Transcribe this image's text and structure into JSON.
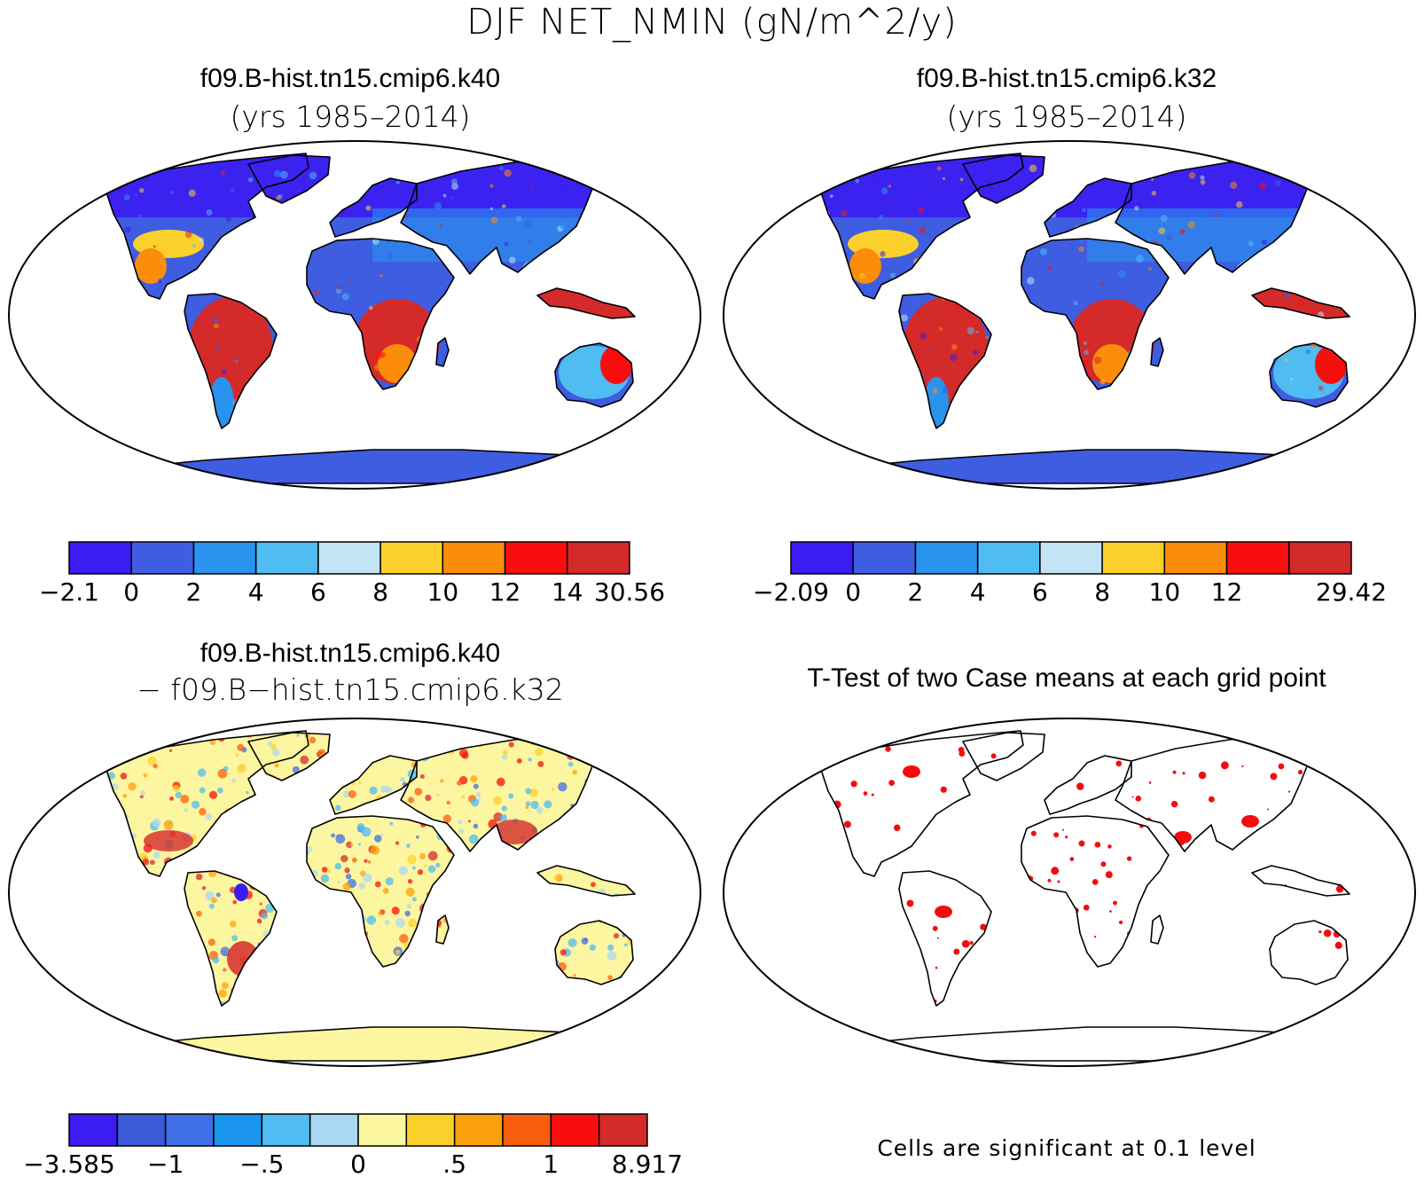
{
  "figure": {
    "title": "DJF NET_NMIN (gN/m^2/y)"
  },
  "panels": [
    {
      "id": "case1",
      "title": "f09.B-hist.tn15.cmip6.k40",
      "subtitle": "(yrs 1985–2014)",
      "map_type": "filled-contour",
      "colorbar": {
        "colors": [
          "#3b1cf2",
          "#3e5de0",
          "#2a93ee",
          "#4fbcf2",
          "#c3e4f5",
          "#fcd02c",
          "#fb8d0a",
          "#f90e0e",
          "#d42a2a"
        ],
        "labels": [
          "−2.1",
          "0",
          "2",
          "4",
          "6",
          "8",
          "10",
          "12",
          "14",
          "30.56"
        ]
      }
    },
    {
      "id": "case2",
      "title": "f09.B-hist.tn15.cmip6.k32",
      "subtitle": "(yrs 1985–2014)",
      "map_type": "filled-contour",
      "colorbar": {
        "colors": [
          "#3b1cf2",
          "#3e5de0",
          "#2a93ee",
          "#4fbcf2",
          "#c3e4f5",
          "#fcd02c",
          "#fb8d0a",
          "#f90e0e",
          "#d42a2a"
        ],
        "labels": [
          "−2.09",
          "0",
          "2",
          "4",
          "6",
          "8",
          "10",
          "12",
          "",
          "29.42"
        ]
      }
    },
    {
      "id": "difference",
      "title": "f09.B-hist.tn15.cmip6.k40",
      "subtitle": "− f09.B−hist.tn15.cmip6.k32",
      "map_type": "difference",
      "colorbar": {
        "colors": [
          "#3b1cf2",
          "#3a5ad8",
          "#3e6fe6",
          "#1a96ee",
          "#4fbcf2",
          "#a9d8f2",
          "#fdf6a0",
          "#fcd02c",
          "#fba10e",
          "#fb5d0e",
          "#f90e0e",
          "#d42a2a"
        ],
        "labels": [
          "−3.585",
          "−1",
          "−.5",
          "0",
          ".5",
          "1",
          "8.917"
        ]
      }
    },
    {
      "id": "ttest",
      "title": "T-Test of two Case means at each grid point",
      "subtitle": "",
      "map_type": "significance",
      "note": "Cells are significant at 0.1 level",
      "significance_color": "#f20d0d"
    }
  ]
}
